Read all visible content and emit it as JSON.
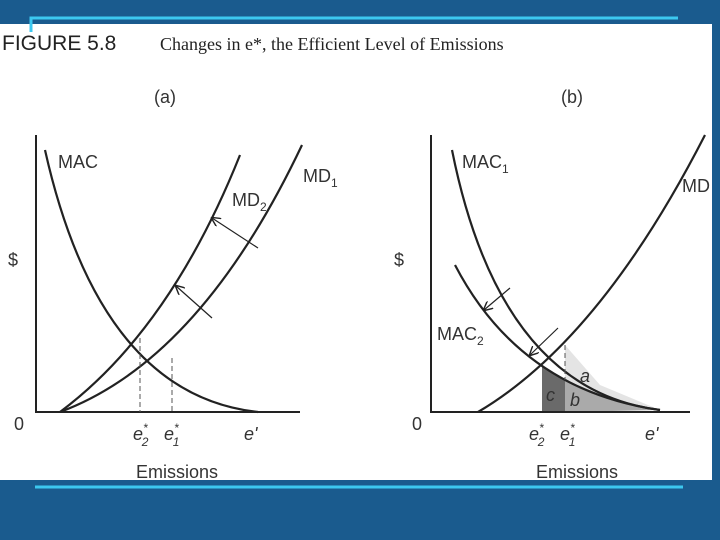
{
  "figure_label": "FIGURE 5.8",
  "caption": "Changes in e*, the Efficient Level of Emissions",
  "panels": [
    {
      "label": "(a)",
      "y_axis": "$",
      "origin": "0",
      "x_axis": "Emissions",
      "curves": [
        {
          "text": "MAC"
        },
        {
          "text": "MD",
          "sub": "2"
        },
        {
          "text": "MD",
          "sub": "1"
        }
      ],
      "ticks": [
        {
          "text": "e",
          "sup": "*",
          "sub": "2"
        },
        {
          "text": "e",
          "sup": "*",
          "sub": "1"
        },
        {
          "text": "e'"
        }
      ]
    },
    {
      "label": "(b)",
      "y_axis": "$",
      "origin": "0",
      "x_axis": "Emissions",
      "curves": [
        {
          "text": "MAC",
          "sub": "1"
        },
        {
          "text": "MD"
        },
        {
          "text": "MAC",
          "sub": "2"
        }
      ],
      "ticks": [
        {
          "text": "e",
          "sup": "*",
          "sub": "2"
        },
        {
          "text": "e",
          "sup": "*",
          "sub": "1"
        },
        {
          "text": "e'"
        }
      ],
      "areas": [
        "a",
        "b",
        "c"
      ]
    }
  ]
}
